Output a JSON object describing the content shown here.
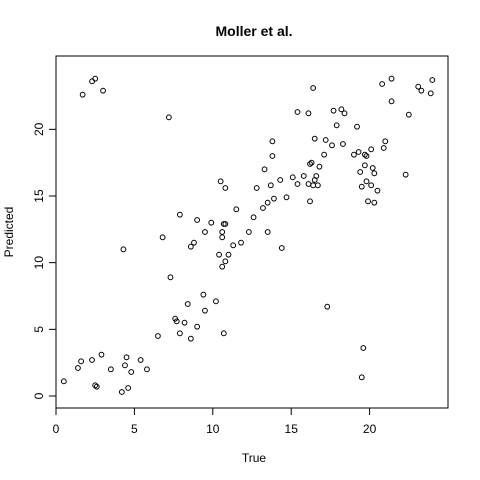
{
  "chart_data": {
    "type": "scatter",
    "title": "Moller et al.",
    "xlabel": "True",
    "ylabel": "Predicted",
    "xlim": [
      0,
      25
    ],
    "ylim": [
      -0.9,
      25.5
    ],
    "xticks": [
      0,
      5,
      10,
      15,
      20
    ],
    "yticks": [
      0,
      5,
      10,
      15,
      20
    ],
    "grid": false,
    "points": [
      [
        0.5,
        1.1
      ],
      [
        1.4,
        2.1
      ],
      [
        1.6,
        2.6
      ],
      [
        2.3,
        2.7
      ],
      [
        2.9,
        3.1
      ],
      [
        3.5,
        2.0
      ],
      [
        2.5,
        0.8
      ],
      [
        2.6,
        0.7
      ],
      [
        4.2,
        0.3
      ],
      [
        4.4,
        2.3
      ],
      [
        4.5,
        2.9
      ],
      [
        4.6,
        0.6
      ],
      [
        4.8,
        1.8
      ],
      [
        5.4,
        2.7
      ],
      [
        5.8,
        2.0
      ],
      [
        1.7,
        22.6
      ],
      [
        2.3,
        23.6
      ],
      [
        2.5,
        23.8
      ],
      [
        3.0,
        22.9
      ],
      [
        4.3,
        11.0
      ],
      [
        6.5,
        4.5
      ],
      [
        6.8,
        11.9
      ],
      [
        7.2,
        20.9
      ],
      [
        7.3,
        8.9
      ],
      [
        7.6,
        5.8
      ],
      [
        7.7,
        5.6
      ],
      [
        7.9,
        4.7
      ],
      [
        7.9,
        13.6
      ],
      [
        8.2,
        5.5
      ],
      [
        8.4,
        6.9
      ],
      [
        8.6,
        11.2
      ],
      [
        8.6,
        4.3
      ],
      [
        8.8,
        11.5
      ],
      [
        9.0,
        5.2
      ],
      [
        9.0,
        13.2
      ],
      [
        9.4,
        7.6
      ],
      [
        9.5,
        12.3
      ],
      [
        9.5,
        6.4
      ],
      [
        9.9,
        13.0
      ],
      [
        10.2,
        7.1
      ],
      [
        10.4,
        10.6
      ],
      [
        10.5,
        16.1
      ],
      [
        10.6,
        12.3
      ],
      [
        10.6,
        11.9
      ],
      [
        10.6,
        9.7
      ],
      [
        10.7,
        12.9
      ],
      [
        10.7,
        4.7
      ],
      [
        10.8,
        15.6
      ],
      [
        10.8,
        12.9
      ],
      [
        10.8,
        10.1
      ],
      [
        11.0,
        10.6
      ],
      [
        11.3,
        11.3
      ],
      [
        11.5,
        14.0
      ],
      [
        11.8,
        11.5
      ],
      [
        12.3,
        12.3
      ],
      [
        12.6,
        13.4
      ],
      [
        12.8,
        15.6
      ],
      [
        13.2,
        14.1
      ],
      [
        13.3,
        17.0
      ],
      [
        13.5,
        12.3
      ],
      [
        13.5,
        14.5
      ],
      [
        13.7,
        15.8
      ],
      [
        13.8,
        18.0
      ],
      [
        13.8,
        19.1
      ],
      [
        13.9,
        14.8
      ],
      [
        14.3,
        16.2
      ],
      [
        14.4,
        11.1
      ],
      [
        14.7,
        14.9
      ],
      [
        15.1,
        16.4
      ],
      [
        15.4,
        21.3
      ],
      [
        15.4,
        15.9
      ],
      [
        15.8,
        16.5
      ],
      [
        16.1,
        21.2
      ],
      [
        16.1,
        15.9
      ],
      [
        16.2,
        14.6
      ],
      [
        16.2,
        17.4
      ],
      [
        16.3,
        17.5
      ],
      [
        16.4,
        23.1
      ],
      [
        16.4,
        15.8
      ],
      [
        16.5,
        19.3
      ],
      [
        16.5,
        16.2
      ],
      [
        16.6,
        16.5
      ],
      [
        16.7,
        15.8
      ],
      [
        16.8,
        17.2
      ],
      [
        17.1,
        18.1
      ],
      [
        17.2,
        19.2
      ],
      [
        17.3,
        6.7
      ],
      [
        17.6,
        18.8
      ],
      [
        17.7,
        21.4
      ],
      [
        17.9,
        20.3
      ],
      [
        18.2,
        21.5
      ],
      [
        18.3,
        18.9
      ],
      [
        18.4,
        21.2
      ],
      [
        19.0,
        18.1
      ],
      [
        19.2,
        20.2
      ],
      [
        19.3,
        18.3
      ],
      [
        19.4,
        16.8
      ],
      [
        19.5,
        15.7
      ],
      [
        19.5,
        1.4
      ],
      [
        19.6,
        3.6
      ],
      [
        19.7,
        18.1
      ],
      [
        19.7,
        17.3
      ],
      [
        19.8,
        18.0
      ],
      [
        19.8,
        16.1
      ],
      [
        19.9,
        14.6
      ],
      [
        20.1,
        18.5
      ],
      [
        20.1,
        15.8
      ],
      [
        20.2,
        17.1
      ],
      [
        20.3,
        16.7
      ],
      [
        20.3,
        14.5
      ],
      [
        20.5,
        15.4
      ],
      [
        20.8,
        23.4
      ],
      [
        20.9,
        18.6
      ],
      [
        21.0,
        19.1
      ],
      [
        21.4,
        22.1
      ],
      [
        21.4,
        23.8
      ],
      [
        22.3,
        16.6
      ],
      [
        22.5,
        21.1
      ],
      [
        23.1,
        23.2
      ],
      [
        23.3,
        22.9
      ],
      [
        23.9,
        22.7
      ],
      [
        24.0,
        23.7
      ]
    ]
  }
}
